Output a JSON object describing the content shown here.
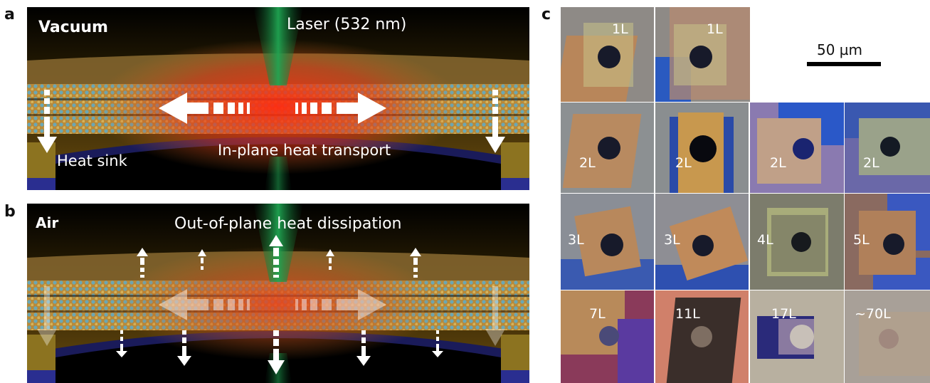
{
  "panels": {
    "a": {
      "letter": "a",
      "condition": "Vacuum",
      "laser": "Laser (532 nm)",
      "heat_sink": "Heat sink",
      "transport": "In-plane heat transport"
    },
    "b": {
      "letter": "b",
      "condition": "Air",
      "dissipation": "Out-of-plane heat dissipation"
    },
    "c": {
      "letter": "c",
      "scale_bar": "50 µm",
      "tiles": [
        "1L",
        "1L",
        "2L",
        "2L",
        "2L",
        "2L",
        "3L",
        "3L",
        "4L",
        "5L",
        "7L",
        "11L",
        "17L",
        "~70L"
      ]
    }
  }
}
